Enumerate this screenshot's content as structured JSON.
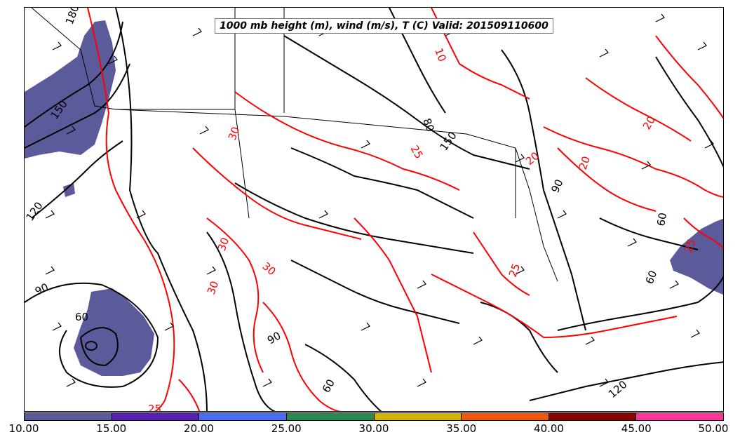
{
  "title": "1000 mb height (m), wind (m/s), T (C) Valid: 201509110600",
  "colorbar": {
    "ticks": [
      "10.00",
      "15.00",
      "20.00",
      "25.00",
      "30.00",
      "35.00",
      "40.00",
      "45.00",
      "50.00"
    ],
    "colors": [
      "#5b5b9b",
      "#5a1fb5",
      "#4a6cf7",
      "#2a8a4e",
      "#d6b300",
      "#f2580c",
      "#f0450a",
      "#8b0000",
      "#ff3399"
    ]
  },
  "wind_fill_color": "#5b5b9b",
  "height_contour_color": "#000000",
  "temperature_contour_color": "#ff0000",
  "height_labels": [
    "180",
    "150",
    "120",
    "90",
    "60",
    "150",
    "90",
    "60",
    "120",
    "60",
    "80",
    "90",
    "60"
  ],
  "temperature_labels": [
    "25",
    "30",
    "30",
    "30",
    "25",
    "20",
    "20",
    "20",
    "25",
    "30",
    "10",
    "25"
  ]
}
